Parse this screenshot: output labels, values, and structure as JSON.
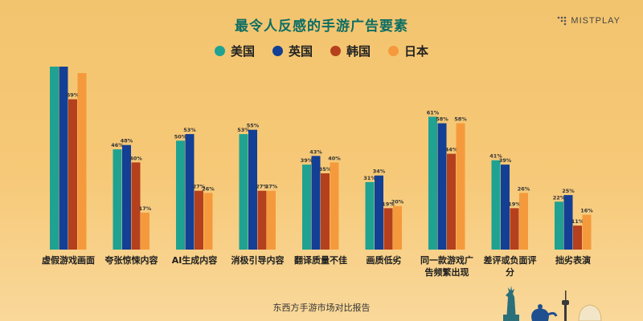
{
  "header": {
    "title": "最令人反感的手游广告要素",
    "brand": "MISTPLAY",
    "footer": "东西方手游市场对比报告"
  },
  "colors": {
    "美国": "#1fa291",
    "英国": "#133f95",
    "韩国": "#b5401d",
    "日本": "#f59a3c"
  },
  "chart_data": {
    "type": "bar",
    "title": "最令人反感的手游广告要素",
    "categories": [
      "虚假游戏画面",
      "夸张惊悚内容",
      "AI生成内容",
      "消极引导内容",
      "翻译质量不佳",
      "画质低劣",
      "同一款游戏广告频繁出现",
      "差评或负面评分",
      "拙劣表演"
    ],
    "category_lines": [
      [
        "虚假游戏画面"
      ],
      [
        "夸张惊悚内容"
      ],
      [
        "AI生成内容"
      ],
      [
        "消极引导内容"
      ],
      [
        "翻译质量不佳"
      ],
      [
        "画质低劣"
      ],
      [
        "同一款游戏广",
        "告频繁出现"
      ],
      [
        "差评或负面评",
        "分"
      ],
      [
        "拙劣表演"
      ]
    ],
    "series": [
      {
        "name": "美国",
        "values": [
          84,
          46,
          50,
          53,
          39,
          31,
          61,
          41,
          22
        ],
        "labels": [
          "",
          "46%",
          "50%",
          "53%",
          "39%",
          "31%",
          "61%",
          "41%",
          "22%"
        ]
      },
      {
        "name": "英国",
        "values": [
          84,
          48,
          53,
          55,
          43,
          34,
          58,
          39,
          25
        ],
        "labels": [
          "",
          "48%",
          "53%",
          "55%",
          "43%",
          "34%",
          "58%",
          "39%",
          "25%"
        ]
      },
      {
        "name": "韩国",
        "values": [
          69,
          40,
          27,
          27,
          35,
          19,
          44,
          19,
          11
        ],
        "labels": [
          "69%",
          "40%",
          "27%",
          "27%",
          "35%",
          "19%",
          "44%",
          "19%",
          "11%"
        ]
      },
      {
        "name": "日本",
        "values": [
          81,
          17,
          26,
          27,
          40,
          20,
          58,
          26,
          16
        ],
        "labels": [
          "",
          "17%",
          "26%",
          "27%",
          "40%",
          "20%",
          "58%",
          "26%",
          "16%"
        ]
      }
    ],
    "legend_position": "top",
    "grid": false,
    "ylim": [
      0,
      84
    ]
  }
}
